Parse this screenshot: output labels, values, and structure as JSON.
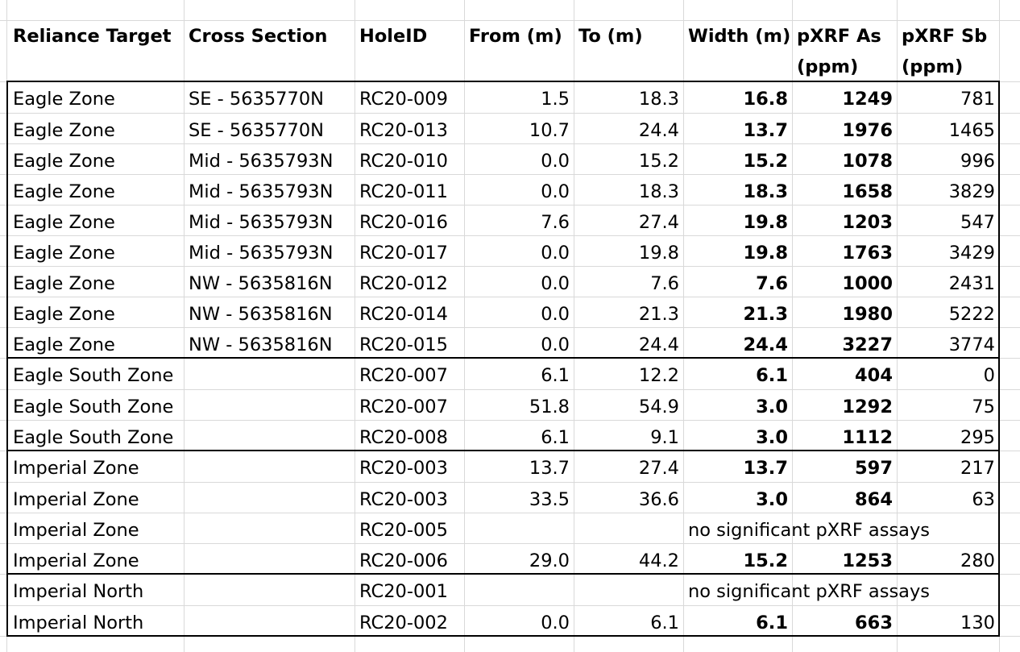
{
  "headers": [
    "Reliance Target",
    "Cross Section",
    "HoleID",
    "From (m)",
    "To (m)",
    "Width (m)",
    "pXRF As",
    "pXRF Sb"
  ],
  "headers_line2": [
    "(ppm)",
    "(ppm)"
  ],
  "rows": [
    [
      "Eagle Zone",
      "SE - 5635770N",
      "RC20-009",
      "1.5",
      "18.3",
      "16.8",
      "1249",
      "781"
    ],
    [
      "Eagle Zone",
      "SE - 5635770N",
      "RC20-013",
      "10.7",
      "24.4",
      "13.7",
      "1976",
      "1465"
    ],
    [
      "Eagle Zone",
      "Mid - 5635793N",
      "RC20-010",
      "0.0",
      "15.2",
      "15.2",
      "1078",
      "996"
    ],
    [
      "Eagle Zone",
      "Mid - 5635793N",
      "RC20-011",
      "0.0",
      "18.3",
      "18.3",
      "1658",
      "3829"
    ],
    [
      "Eagle Zone",
      "Mid - 5635793N",
      "RC20-016",
      "7.6",
      "27.4",
      "19.8",
      "1203",
      "547"
    ],
    [
      "Eagle Zone",
      "Mid - 5635793N",
      "RC20-017",
      "0.0",
      "19.8",
      "19.8",
      "1763",
      "3429"
    ],
    [
      "Eagle Zone",
      "NW - 5635816N",
      "RC20-012",
      "0.0",
      "7.6",
      "7.6",
      "1000",
      "2431"
    ],
    [
      "Eagle Zone",
      "NW - 5635816N",
      "RC20-014",
      "0.0",
      "21.3",
      "21.3",
      "1980",
      "5222"
    ],
    [
      "Eagle Zone",
      "NW - 5635816N",
      "RC20-015",
      "0.0",
      "24.4",
      "24.4",
      "3227",
      "3774"
    ],
    [
      "Eagle South Zone",
      "",
      "RC20-007",
      "6.1",
      "12.2",
      "6.1",
      "404",
      "0"
    ],
    [
      "Eagle South Zone",
      "",
      "RC20-007",
      "51.8",
      "54.9",
      "3.0",
      "1292",
      "75"
    ],
    [
      "Eagle South Zone",
      "",
      "RC20-008",
      "6.1",
      "9.1",
      "3.0",
      "1112",
      "295"
    ],
    [
      "Imperial Zone",
      "",
      "RC20-003",
      "13.7",
      "27.4",
      "13.7",
      "597",
      "217"
    ],
    [
      "Imperial Zone",
      "",
      "RC20-003",
      "33.5",
      "36.6",
      "3.0",
      "864",
      "63"
    ],
    [
      "Imperial Zone",
      "",
      "RC20-005",
      "",
      "",
      "no significant pXRF assays",
      "",
      ""
    ],
    [
      "Imperial Zone",
      "",
      "RC20-006",
      "29.0",
      "44.2",
      "15.2",
      "1253",
      "280"
    ],
    [
      "Imperial North",
      "",
      "RC20-001",
      "",
      "",
      "no significant pXRF assays",
      "",
      ""
    ],
    [
      "Imperial North",
      "",
      "RC20-002",
      "0.0",
      "6.1",
      "6.1",
      "663",
      "130"
    ]
  ]
}
